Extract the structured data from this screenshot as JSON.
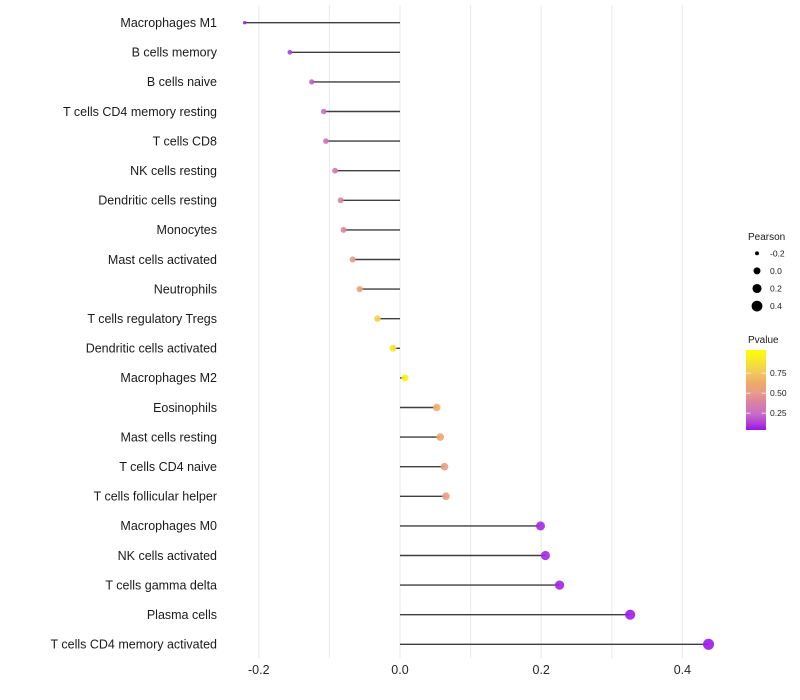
{
  "chart_data": {
    "type": "lollipop",
    "orientation": "horizontal",
    "title": "",
    "xlabel": "",
    "ylabel": "",
    "categories": [
      "Macrophages M1",
      "B cells memory",
      "B cells naive",
      "T cells CD4 memory resting",
      "T cells CD8",
      "NK cells resting",
      "Dendritic cells resting",
      "Monocytes",
      "Mast cells activated",
      "Neutrophils",
      "T cells regulatory  Tregs",
      "Dendritic cells activated",
      "Macrophages M2",
      "Eosinophils",
      "Mast cells resting",
      "T cells CD4 naive",
      "T cells follicular helper",
      "Macrophages M0",
      "NK cells activated",
      "T cells gamma delta",
      "Plasma cells",
      "T cells CD4 memory activated"
    ],
    "series": [
      {
        "name": "Pearson",
        "values": [
          -0.22,
          -0.156,
          -0.125,
          -0.108,
          -0.105,
          -0.092,
          -0.084,
          -0.08,
          -0.067,
          -0.057,
          -0.032,
          -0.01,
          0.007,
          0.052,
          0.057,
          0.063,
          0.065,
          0.199,
          0.206,
          0.226,
          0.326,
          0.437
        ]
      },
      {
        "name": "Pvalue",
        "values": [
          0.02,
          0.12,
          0.2,
          0.26,
          0.28,
          0.34,
          0.4,
          0.41,
          0.5,
          0.57,
          0.8,
          0.9,
          0.96,
          0.64,
          0.62,
          0.52,
          0.51,
          0.07,
          0.06,
          0.05,
          0.03,
          0.02
        ]
      }
    ],
    "x_axis": {
      "ticks": [
        "-0.2",
        "0.0",
        "0.2",
        "0.4"
      ],
      "tick_values": [
        -0.2,
        0.0,
        0.2,
        0.4
      ],
      "gridline_values": [
        -0.2,
        -0.1,
        0.0,
        0.1,
        0.2,
        0.3,
        0.4
      ],
      "range": [
        -0.232,
        0.448
      ],
      "grid": "on"
    },
    "legend": {
      "position": "right",
      "size": {
        "title": "Pearson",
        "break_values": [
          -0.2,
          0.0,
          0.2,
          0.4
        ],
        "labels": [
          "-0.2",
          "0.0",
          "0.2",
          "0.4"
        ]
      },
      "color": {
        "title": "Pvalue",
        "tick_values": [
          0.75,
          0.5,
          0.25
        ],
        "labels": [
          "0.75",
          "0.50",
          "0.25"
        ],
        "bar_range": [
          0.04,
          1.04
        ],
        "gradient_stops": [
          [
            0.0,
            "#9712EE"
          ],
          [
            0.12,
            "#B13DD9"
          ],
          [
            0.25,
            "#C96FC7"
          ],
          [
            0.4,
            "#DC839E"
          ],
          [
            0.5,
            "#E89C8A"
          ],
          [
            0.62,
            "#EDA968"
          ],
          [
            0.75,
            "#F2C75F"
          ],
          [
            0.88,
            "#F6E136"
          ],
          [
            1.0,
            "#FBF90E"
          ]
        ]
      }
    },
    "colors": {
      "stem": "#3E3E3E",
      "grid": "#E9E9E9",
      "text": "#1A1A1A",
      "legend_dot": "#000000",
      "background": "#FFFFFF"
    }
  }
}
